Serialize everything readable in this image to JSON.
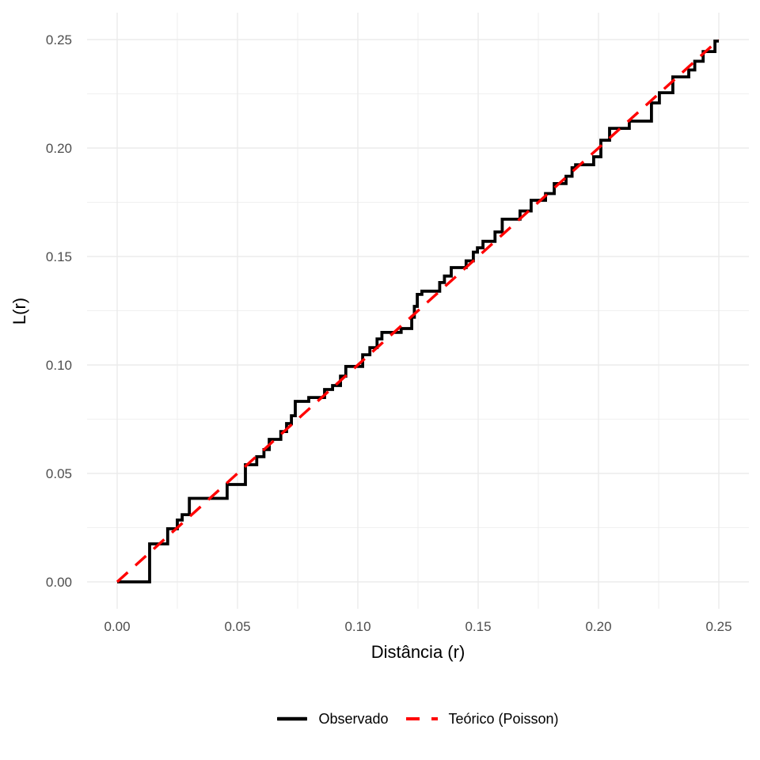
{
  "figure": {
    "x_axis_title": "Distância (r)",
    "y_axis_title": "L(r)",
    "x_tick_labels": [
      "0.00",
      "0.05",
      "0.10",
      "0.15",
      "0.20",
      "0.25"
    ],
    "y_tick_labels": [
      "0.00",
      "0.05",
      "0.10",
      "0.15",
      "0.20",
      "0.25"
    ]
  },
  "legend": {
    "items": [
      {
        "label": "Observado",
        "color": "#000000",
        "linetype": "solid"
      },
      {
        "label": "Teórico (Poisson)",
        "color": "#ff0000",
        "linetype": "dashed"
      }
    ]
  },
  "colors": {
    "background": "#ffffff",
    "gridline": "#ebebeb",
    "tick_label": "#4d4d4d",
    "axis_title": "#000000",
    "observed": "#000000",
    "theoretical": "#ff0000"
  },
  "chart_data": {
    "type": "line",
    "title": "",
    "xlabel": "Distância (r)",
    "ylabel": "L(r)",
    "xlim": [
      0,
      0.25
    ],
    "ylim": [
      0,
      0.25
    ],
    "x_ticks": [
      0,
      0.05,
      0.1,
      0.15,
      0.2,
      0.25
    ],
    "y_ticks": [
      0,
      0.05,
      0.1,
      0.15,
      0.2,
      0.25
    ],
    "grid": "major-and-minor",
    "legend_position": "bottom",
    "series": [
      {
        "name": "Observado",
        "render": "step",
        "color": "#000000",
        "linetype": "solid",
        "points": [
          [
            0.0,
            0.0
          ],
          [
            0.0135,
            0.0175
          ],
          [
            0.021,
            0.0245
          ],
          [
            0.025,
            0.0285
          ],
          [
            0.027,
            0.031
          ],
          [
            0.03,
            0.0385
          ],
          [
            0.0457,
            0.0449
          ],
          [
            0.0533,
            0.054
          ],
          [
            0.058,
            0.0577
          ],
          [
            0.061,
            0.061
          ],
          [
            0.0632,
            0.0657
          ],
          [
            0.068,
            0.0693
          ],
          [
            0.0704,
            0.073
          ],
          [
            0.0724,
            0.0766
          ],
          [
            0.074,
            0.0832
          ],
          [
            0.0796,
            0.085
          ],
          [
            0.0862,
            0.0887
          ],
          [
            0.0895,
            0.0905
          ],
          [
            0.0928,
            0.0948
          ],
          [
            0.095,
            0.0993
          ],
          [
            0.102,
            0.1047
          ],
          [
            0.105,
            0.108
          ],
          [
            0.108,
            0.112
          ],
          [
            0.11,
            0.115
          ],
          [
            0.118,
            0.1168
          ],
          [
            0.1224,
            0.122
          ],
          [
            0.1235,
            0.127
          ],
          [
            0.1247,
            0.1325
          ],
          [
            0.1266,
            0.134
          ],
          [
            0.134,
            0.138
          ],
          [
            0.136,
            0.141
          ],
          [
            0.1388,
            0.1449
          ],
          [
            0.145,
            0.148
          ],
          [
            0.148,
            0.152
          ],
          [
            0.1497,
            0.154
          ],
          [
            0.152,
            0.157
          ],
          [
            0.157,
            0.1613
          ],
          [
            0.16,
            0.1672
          ],
          [
            0.1674,
            0.171
          ],
          [
            0.172,
            0.1759
          ],
          [
            0.178,
            0.179
          ],
          [
            0.1816,
            0.1836
          ],
          [
            0.1865,
            0.187
          ],
          [
            0.189,
            0.1909
          ],
          [
            0.1905,
            0.1923
          ],
          [
            0.198,
            0.196
          ],
          [
            0.201,
            0.2036
          ],
          [
            0.2046,
            0.2091
          ],
          [
            0.2128,
            0.2124
          ],
          [
            0.222,
            0.2208
          ],
          [
            0.2253,
            0.2255
          ],
          [
            0.2309,
            0.2328
          ],
          [
            0.2375,
            0.236
          ],
          [
            0.24,
            0.24
          ],
          [
            0.2435,
            0.2445
          ],
          [
            0.2484,
            0.2493
          ],
          [
            0.25,
            0.2493
          ]
        ]
      },
      {
        "name": "Teórico (Poisson)",
        "render": "line",
        "color": "#ff0000",
        "linetype": "dashed",
        "points": [
          [
            0,
            0
          ],
          [
            0.25,
            0.25
          ]
        ]
      }
    ]
  }
}
